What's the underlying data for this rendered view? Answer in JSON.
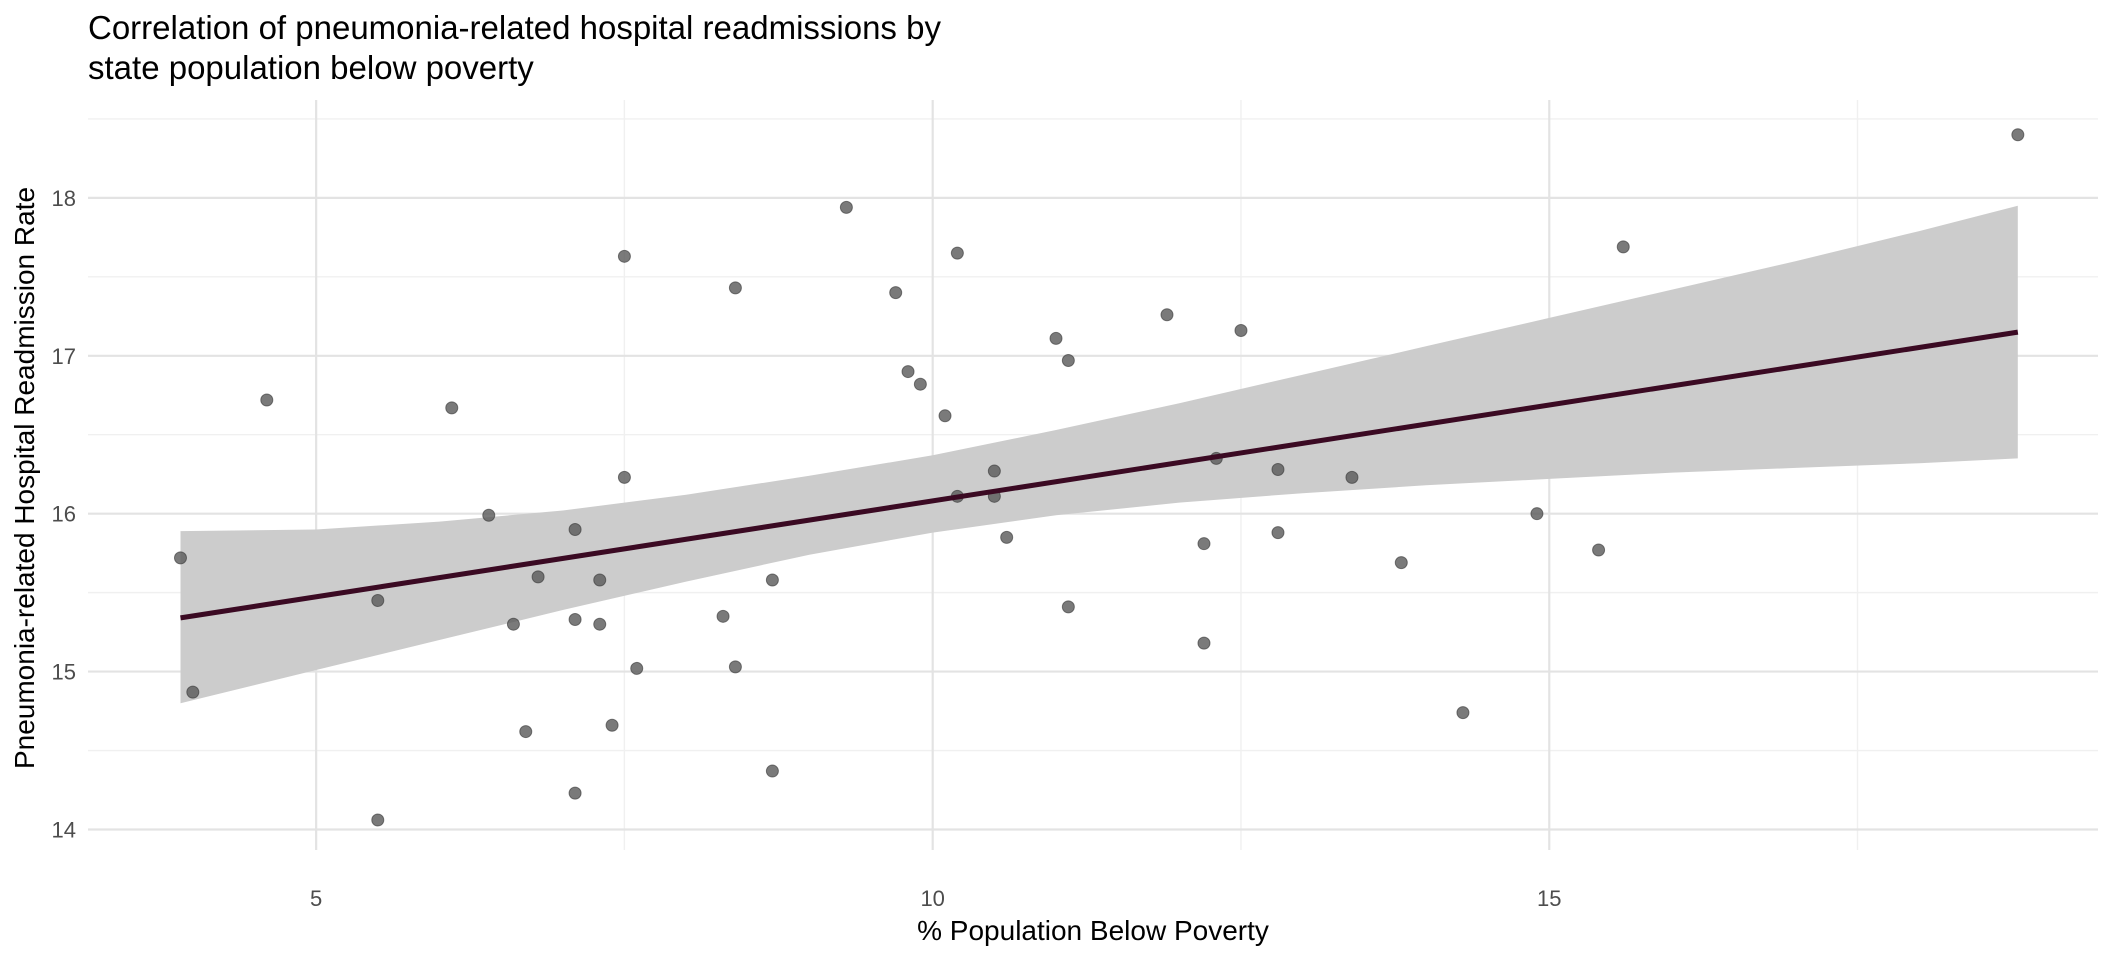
{
  "title_line1": "Correlation of pneumonia-related hospital readmissions by",
  "title_line2": "state population below poverty",
  "chart_data": {
    "type": "scatter",
    "title": "Correlation of pneumonia-related hospital readmissions by state population below poverty",
    "xlabel": "% Population Below Poverty",
    "ylabel": "Pneumonia-related Hospital Readmission Rate",
    "xlim": [
      3.15,
      19.45
    ],
    "ylim": [
      13.87,
      18.62
    ],
    "x_ticks": [
      5,
      10,
      15
    ],
    "y_ticks": [
      14,
      15,
      16,
      17,
      18
    ],
    "x_tick_labels": [
      "5",
      "10",
      "15"
    ],
    "y_tick_labels": [
      "14",
      "15",
      "16",
      "17",
      "18"
    ],
    "grid": true,
    "legend": "none",
    "point_color": "#595959",
    "line_color": "#3b0a23",
    "band_color": "#cccccc",
    "points": [
      {
        "x": 3.9,
        "y": 15.72
      },
      {
        "x": 4.0,
        "y": 14.87
      },
      {
        "x": 4.6,
        "y": 16.72
      },
      {
        "x": 5.5,
        "y": 15.45
      },
      {
        "x": 5.5,
        "y": 14.06
      },
      {
        "x": 6.1,
        "y": 16.67
      },
      {
        "x": 6.4,
        "y": 15.99
      },
      {
        "x": 6.6,
        "y": 15.3
      },
      {
        "x": 6.7,
        "y": 14.62
      },
      {
        "x": 6.8,
        "y": 15.6
      },
      {
        "x": 7.1,
        "y": 15.9
      },
      {
        "x": 7.1,
        "y": 15.33
      },
      {
        "x": 7.1,
        "y": 14.23
      },
      {
        "x": 7.3,
        "y": 15.58
      },
      {
        "x": 7.3,
        "y": 15.3
      },
      {
        "x": 7.4,
        "y": 14.66
      },
      {
        "x": 7.5,
        "y": 17.63
      },
      {
        "x": 7.5,
        "y": 16.23
      },
      {
        "x": 7.6,
        "y": 15.02
      },
      {
        "x": 8.3,
        "y": 15.35
      },
      {
        "x": 8.4,
        "y": 17.43
      },
      {
        "x": 8.4,
        "y": 15.03
      },
      {
        "x": 8.7,
        "y": 15.58
      },
      {
        "x": 8.7,
        "y": 14.37
      },
      {
        "x": 9.3,
        "y": 17.94
      },
      {
        "x": 9.7,
        "y": 17.4
      },
      {
        "x": 9.8,
        "y": 16.9
      },
      {
        "x": 9.9,
        "y": 16.82
      },
      {
        "x": 10.1,
        "y": 16.62
      },
      {
        "x": 10.2,
        "y": 17.65
      },
      {
        "x": 10.2,
        "y": 16.11
      },
      {
        "x": 10.5,
        "y": 16.27
      },
      {
        "x": 10.5,
        "y": 16.11
      },
      {
        "x": 10.6,
        "y": 15.85
      },
      {
        "x": 11.0,
        "y": 17.11
      },
      {
        "x": 11.1,
        "y": 16.97
      },
      {
        "x": 11.1,
        "y": 15.41
      },
      {
        "x": 11.9,
        "y": 17.26
      },
      {
        "x": 12.2,
        "y": 15.81
      },
      {
        "x": 12.2,
        "y": 15.18
      },
      {
        "x": 12.3,
        "y": 16.35
      },
      {
        "x": 12.5,
        "y": 17.16
      },
      {
        "x": 12.8,
        "y": 16.28
      },
      {
        "x": 12.8,
        "y": 15.88
      },
      {
        "x": 13.4,
        "y": 16.23
      },
      {
        "x": 13.8,
        "y": 15.69
      },
      {
        "x": 14.3,
        "y": 14.74
      },
      {
        "x": 14.9,
        "y": 16.0
      },
      {
        "x": 15.4,
        "y": 15.77
      },
      {
        "x": 15.6,
        "y": 17.69
      },
      {
        "x": 18.8,
        "y": 18.4
      }
    ],
    "fit_line": {
      "x": [
        3.9,
        18.8
      ],
      "y": [
        15.34,
        17.15
      ]
    },
    "confidence_band": {
      "x": [
        3.9,
        5,
        6,
        7,
        8,
        9,
        10,
        11,
        12,
        13,
        14,
        15,
        16,
        17,
        18,
        18.8
      ],
      "lower": [
        14.8,
        15.01,
        15.2,
        15.39,
        15.57,
        15.74,
        15.88,
        15.99,
        16.07,
        16.13,
        16.18,
        16.22,
        16.26,
        16.29,
        16.32,
        16.35
      ],
      "upper": [
        15.89,
        15.9,
        15.95,
        16.02,
        16.12,
        16.24,
        16.37,
        16.53,
        16.7,
        16.88,
        17.06,
        17.24,
        17.42,
        17.6,
        17.79,
        17.95
      ]
    }
  }
}
